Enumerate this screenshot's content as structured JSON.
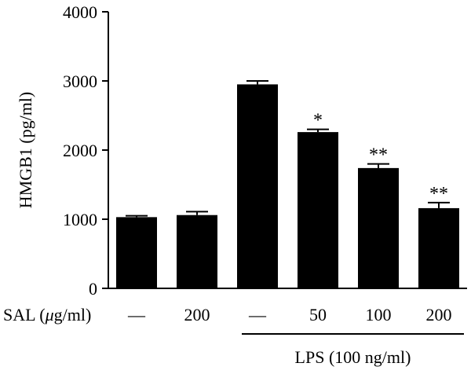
{
  "chart_data": {
    "type": "bar",
    "ylabel": "HMGB1 (pg/ml)",
    "ylim": [
      0,
      4000
    ],
    "yticks": [
      "0",
      "1000",
      "2000",
      "3000",
      "4000"
    ],
    "row_label_prefix": "SAL (",
    "row_label_mu": "μ",
    "row_label_suffix": "g/ml)",
    "categories": [
      "—",
      "200",
      "—",
      "50",
      "100",
      "200"
    ],
    "values": [
      1030,
      1060,
      2950,
      2260,
      1740,
      1160
    ],
    "errors": [
      20,
      50,
      50,
      40,
      60,
      80
    ],
    "significance": [
      "",
      "",
      "",
      "*",
      "**",
      "**"
    ],
    "group_label": "LPS (100 ng/ml)",
    "bar_color": "#000000"
  }
}
